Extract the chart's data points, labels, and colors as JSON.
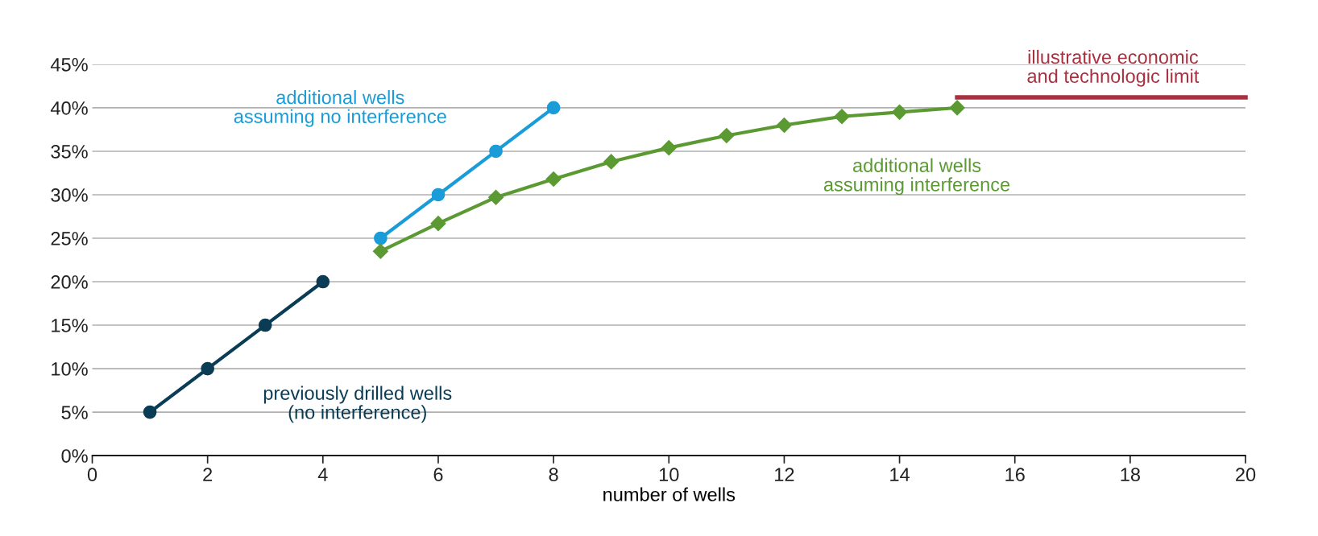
{
  "chart_data": {
    "type": "line",
    "xlabel": "number of wells",
    "xlim": [
      0,
      20
    ],
    "xticks": [
      0,
      2,
      4,
      6,
      8,
      10,
      12,
      14,
      16,
      18,
      20
    ],
    "ylim": [
      0,
      45
    ],
    "yticks": [
      {
        "value": 0,
        "label": "0%"
      },
      {
        "value": 5,
        "label": "5%"
      },
      {
        "value": 10,
        "label": "10%"
      },
      {
        "value": 15,
        "label": "15%"
      },
      {
        "value": 20,
        "label": "20%"
      },
      {
        "value": 25,
        "label": "25%"
      },
      {
        "value": 30,
        "label": "30%"
      },
      {
        "value": 35,
        "label": "35%"
      },
      {
        "value": 40,
        "label": "40%"
      },
      {
        "value": 45,
        "label": "45%"
      }
    ],
    "grid": "y",
    "legend": false,
    "series": [
      {
        "color": "#0b3c55",
        "marker": "circle",
        "x": [
          1,
          2,
          3,
          4
        ],
        "values": [
          5,
          10,
          15,
          20
        ]
      },
      {
        "color": "#1a9cd8",
        "marker": "circle",
        "x": [
          5,
          6,
          7,
          8
        ],
        "values": [
          25,
          30,
          35,
          40
        ]
      },
      {
        "color": "#5b9a32",
        "marker": "diamond",
        "x": [
          5,
          6,
          7,
          8,
          9,
          10,
          11,
          12,
          13,
          14,
          15
        ],
        "values": [
          23.5,
          26.7,
          29.7,
          31.8,
          33.8,
          35.4,
          36.8,
          38,
          39,
          39.5,
          40
        ]
      },
      {
        "color": "#a8303f",
        "marker": "none",
        "x": [
          15,
          20
        ],
        "values": [
          41.2,
          41.2
        ]
      }
    ],
    "annotations": [
      "previously drilled wells\n(no interference)",
      "additional wells\nassuming no interference",
      "additional wells\nassuming interference",
      "illustrative economic\nand technologic limit"
    ]
  }
}
